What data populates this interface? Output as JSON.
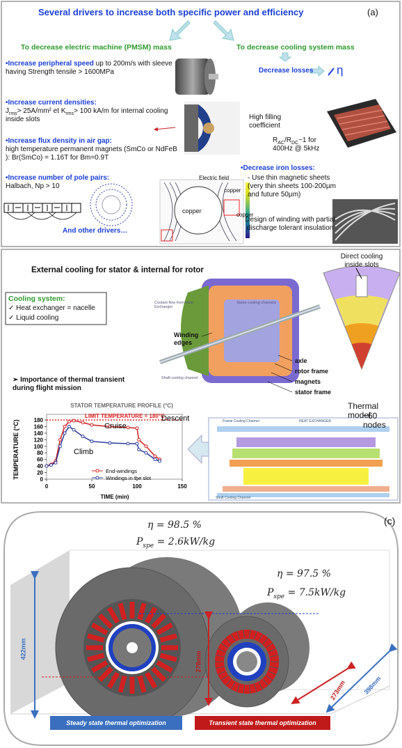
{
  "panel_a": {
    "title": "Several drivers to increase both specific power and efficiency",
    "label": "(a)",
    "left_heading": "To decrease electric machine (PMSM) mass",
    "right_heading": "To decrease cooling system mass",
    "decrease_losses": "Decrease losses",
    "efficiency_symbol": "η",
    "drivers": [
      {
        "title": "•Increase peripheral speed",
        "text": " up to 200m/s  with sleeve having Strength tensile > 1600MPa"
      },
      {
        "title": "•Increase current densities:",
        "text_parts": [
          "J",
          "rms",
          "> 25A/mm² et K",
          "rms",
          "> 100 kA/m for internal cooling inside slots"
        ]
      },
      {
        "title": "•Increase flux density in air gap:",
        "text": "high temperature permanent magnets (SmCo or NdFeB ): Br(SmCo) = 1.16T for Bm=0.9T"
      },
      {
        "title": "•Increase number of pole pairs:",
        "text": "Halbach, Np > 10"
      }
    ],
    "other_drivers": "And other drivers…",
    "filling": "High filling coefficient",
    "rac_parts": [
      "R",
      "AC",
      "/R",
      "DC",
      "~1 for 400Hz @ 5kHz"
    ],
    "iron_losses_title": "•Decrease iron losses:",
    "iron_losses_text": "- Use thin magnetic sheets (very thin sheets 100-200µm and future 50µm)",
    "winding_design": "Design of winding with partial discharge tolerant insulation",
    "field_plot": {
      "title": "Electric field",
      "labels": [
        "copper",
        "copper",
        "copper"
      ]
    }
  },
  "panel_b": {
    "title": "External cooling for stator & internal for rotor",
    "direct_cooling": "Direct cooling inside slots",
    "cooling_title": "Cooling system:",
    "cooling_items": [
      "✓  Heat exchanger = nacelle",
      "✓  Liquid cooling"
    ],
    "machine_labels": {
      "coolant": "Coolant flow from Heat Exchanger",
      "stator_channels": "Stator cooling channels",
      "shaft_channel": "Shaft cooling channel",
      "winding_edges": "Winding edges",
      "parts": [
        "axle",
        "rotor frame",
        "magnets",
        "stator frame"
      ]
    },
    "importance": "➢  Importance of thermal transient during flight mission",
    "thermal_model": "Thermal model",
    "nodes": "~60 nodes",
    "network_labels": [
      "Frame Cooling Channel",
      "HEAT EXCHANGER",
      "Shaft Cooling Channel"
    ],
    "chart": {
      "type": "line",
      "title": "STATOR TEMPERATURE PROFILE (°C)",
      "xlabel": "TIME (min)",
      "ylabel": "TEMPERATURE (°C)",
      "limit_line": 180,
      "limit_label": "LIMIT TEMPERATURE = 180°C",
      "annotations": [
        "Cruise",
        "Descent",
        "Climb"
      ],
      "x": [
        0,
        5,
        10,
        15,
        20,
        25,
        30,
        40,
        50,
        70,
        90,
        100,
        102,
        110,
        120,
        125
      ],
      "series": [
        {
          "name": "End-windings",
          "color": "#d02020",
          "values": [
            40,
            45,
            55,
            120,
            160,
            175,
            178,
            172,
            165,
            160,
            157,
            155,
            120,
            100,
            70,
            60
          ]
        },
        {
          "name": "Windings in the slot",
          "color": "#2c3c9c",
          "values": [
            40,
            43,
            50,
            100,
            140,
            160,
            150,
            130,
            115,
            110,
            108,
            108,
            90,
            80,
            60,
            55
          ]
        }
      ],
      "xlim": [
        0,
        150
      ],
      "ylim": [
        0,
        180
      ],
      "xticks": [
        0,
        50,
        100,
        150
      ],
      "yticks": [
        0,
        20,
        40,
        60,
        80,
        100,
        120,
        140,
        160,
        180
      ]
    }
  },
  "panel_c": {
    "label": "(c)",
    "eta_1": "η = 98.5 %",
    "pspe_1_parts": [
      "P",
      "spe",
      " = 2.6kW/kg"
    ],
    "eta_2": "η = 97.5 %",
    "pspe_2_parts": [
      "P",
      "spe",
      " = 7.5kW/kg"
    ],
    "dimensions": [
      "422mm",
      "278mm",
      "273mm",
      "398mm"
    ],
    "steady": "Steady state thermal optimization",
    "transient": "Transient state thermal optimization"
  }
}
